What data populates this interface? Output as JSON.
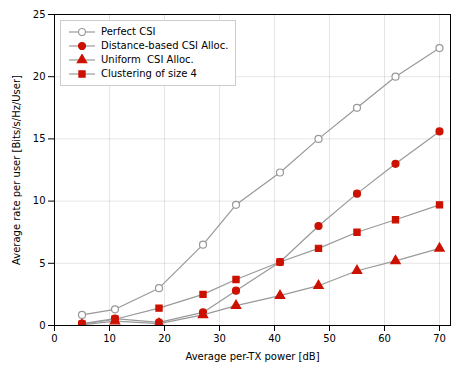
{
  "chart_data": {
    "type": "line",
    "xlabel": "Average per-TX power [dB]",
    "ylabel": "Average rate per user [Bits/s/Hz/User]",
    "x": [
      5,
      11,
      19,
      27,
      33,
      41,
      48,
      55,
      62,
      70
    ],
    "color": "#999999",
    "series": [
      {
        "name": "Perfect CSI",
        "color": "#999999",
        "marker": "circle-open",
        "values": [
          0.85,
          1.3,
          3.0,
          6.5,
          9.7,
          12.3,
          15.0,
          17.5,
          20.0,
          22.3
        ]
      },
      {
        "name": "Distance-based CSI Alloc.",
        "color": "#cc1100",
        "marker": "circle",
        "values": [
          0.15,
          0.55,
          0.25,
          1.05,
          2.8,
          5.1,
          8.0,
          10.6,
          13.0,
          15.6
        ]
      },
      {
        "name": "Uniform  CSI Alloc.",
        "color": "#cc1100",
        "marker": "triangle",
        "values": [
          0.05,
          0.35,
          0.15,
          0.85,
          1.6,
          2.4,
          3.2,
          4.4,
          5.2,
          6.2
        ]
      },
      {
        "name": "Clustering of size 4",
        "color": "#cc1100",
        "marker": "square",
        "values": [
          0.1,
          0.5,
          1.4,
          2.5,
          3.7,
          5.1,
          6.2,
          7.5,
          8.5,
          9.7
        ]
      }
    ],
    "xlim": [
      0,
      72
    ],
    "ylim": [
      0,
      25
    ],
    "xticks": [
      0,
      10,
      20,
      30,
      40,
      50,
      60,
      70
    ],
    "yticks": [
      0,
      5,
      10,
      15,
      20,
      25
    ],
    "grid": true,
    "legend": "upper left"
  }
}
